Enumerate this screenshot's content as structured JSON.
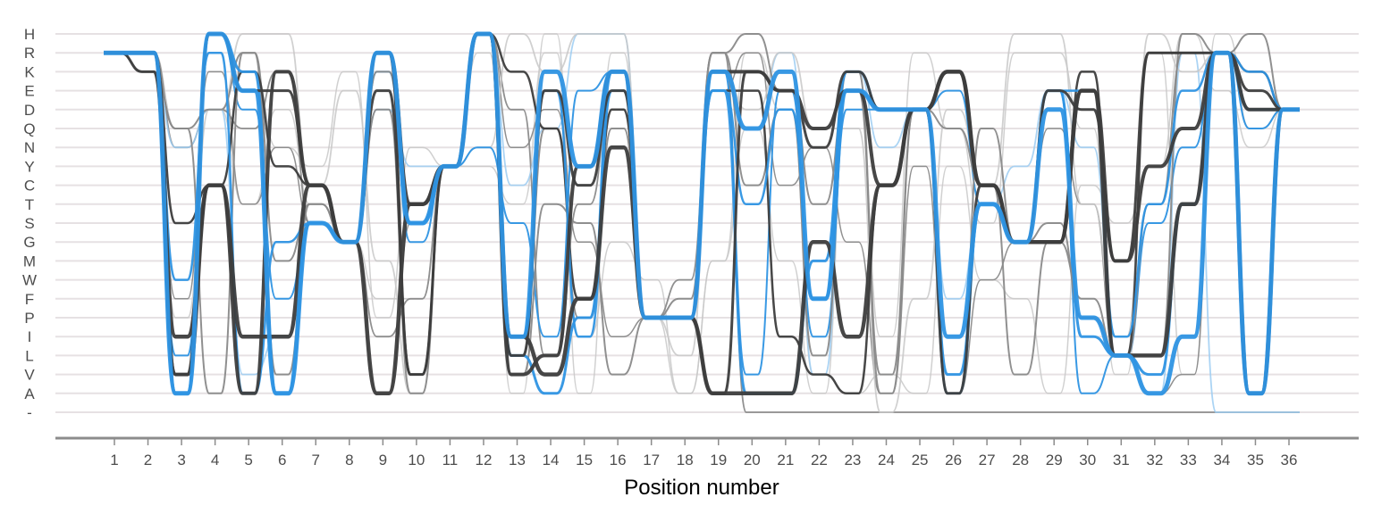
{
  "chart_data": {
    "type": "line",
    "xlabel": "Position number",
    "ylabel": "",
    "y_categories": [
      "H",
      "R",
      "K",
      "E",
      "D",
      "Q",
      "N",
      "Y",
      "C",
      "T",
      "S",
      "G",
      "M",
      "W",
      "F",
      "P",
      "I",
      "L",
      "V",
      "A",
      "-"
    ],
    "x": [
      1,
      2,
      3,
      4,
      5,
      6,
      7,
      8,
      9,
      10,
      11,
      12,
      13,
      14,
      15,
      16,
      17,
      18,
      19,
      20,
      21,
      22,
      23,
      24,
      25,
      26,
      27,
      28,
      29,
      30,
      31,
      32,
      33,
      34,
      35,
      36
    ],
    "colors": {
      "blue": "#2e93e3",
      "blue_light": "#9ccdf2",
      "dark": "#3d3d3d",
      "grey": "#8a8a8a",
      "grey_light": "#c8c8c8"
    },
    "series": [
      {
        "color": "blue",
        "weight": 5,
        "values": [
          "R",
          "R",
          "A",
          "H",
          "E",
          "A",
          "S",
          "G",
          "R",
          "S",
          "Y",
          "H",
          "I",
          "K",
          "Y",
          "K",
          "P",
          "P",
          "K",
          "Q",
          "K",
          "F",
          "E",
          "D",
          "D",
          "I",
          "T",
          "G",
          "D",
          "P",
          "L",
          "A",
          "I",
          "R",
          "A",
          "D"
        ]
      },
      {
        "color": "dark",
        "weight": 4.5,
        "values": [
          "R",
          "R",
          "I",
          "C",
          "I",
          "I",
          "C",
          "G",
          "A",
          "T",
          "Y",
          "H",
          "I",
          "V",
          "F",
          "N",
          "P",
          "P",
          "A",
          "A",
          "A",
          "G",
          "I",
          "C",
          "D",
          "K",
          "C",
          "G",
          "G",
          "E",
          "L",
          "L",
          "T",
          "R",
          "A",
          "D"
        ]
      },
      {
        "color": "dark",
        "weight": 4,
        "values": [
          "R",
          "R",
          "V",
          "C",
          "A",
          "K",
          "C",
          "G",
          "R",
          "T",
          "Y",
          "H",
          "V",
          "L",
          "Y",
          "K",
          "P",
          "P",
          "K",
          "K",
          "E",
          "Q",
          "E",
          "C",
          "D",
          "K",
          "C",
          "G",
          "G",
          "E",
          "M",
          "Y",
          "Q",
          "R",
          "D",
          "D"
        ]
      },
      {
        "color": "blue",
        "weight": 3,
        "values": [
          "R",
          "R",
          "A",
          "H",
          "K",
          "A",
          "S",
          "G",
          "R",
          "S",
          "Y",
          "H",
          "L",
          "A",
          "P",
          "K",
          "P",
          "P",
          "E",
          "A",
          "A",
          "M",
          "K",
          "D",
          "D",
          "V",
          "T",
          "G",
          "E",
          "I",
          "L",
          "V",
          "T",
          "R",
          "D",
          "D"
        ]
      },
      {
        "color": "dark",
        "weight": 3,
        "values": [
          "R",
          "K",
          "V",
          "H",
          "E",
          "E",
          "C",
          "G",
          "E",
          "V",
          "Y",
          "H",
          "L",
          "E",
          "C",
          "E",
          "P",
          "P",
          "A",
          "K",
          "E",
          "N",
          "K",
          "D",
          "D",
          "A",
          "C",
          "G",
          "E",
          "D",
          "M",
          "R",
          "R",
          "R",
          "E",
          "D"
        ]
      },
      {
        "color": "dark",
        "weight": 2.5,
        "values": [
          "R",
          "R",
          "S",
          "C",
          "K",
          "Y",
          "C",
          "G",
          "R",
          "V",
          "Y",
          "H",
          "K",
          "Q",
          "F",
          "D",
          "P",
          "P",
          "E",
          "E",
          "I",
          "V",
          "A",
          "C",
          "D",
          "K",
          "C",
          "G",
          "G",
          "K",
          "L",
          "R",
          "R",
          "R",
          "K",
          "D"
        ]
      },
      {
        "color": "blue",
        "weight": 2.5,
        "values": [
          "R",
          "R",
          "W",
          "R",
          "A",
          "G",
          "S",
          "G",
          "R",
          "S",
          "Y",
          "H",
          "I",
          "E",
          "I",
          "E",
          "P",
          "P",
          "E",
          "T",
          "D",
          "F",
          "E",
          "D",
          "D",
          "A",
          "T",
          "G",
          "E",
          "E",
          "I",
          "T",
          "E",
          "R",
          "K",
          "D"
        ]
      },
      {
        "color": "blue",
        "weight": 2,
        "values": [
          "R",
          "K",
          "L",
          "H",
          "D",
          "F",
          "S",
          "G",
          "K",
          "G",
          "Y",
          "N",
          "S",
          "I",
          "E",
          "K",
          "P",
          "P",
          "K",
          "V",
          "E",
          "I",
          "D",
          "D",
          "D",
          "E",
          "T",
          "G",
          "E",
          "A",
          "L",
          "S",
          "N",
          "R",
          "Q",
          "D"
        ]
      },
      {
        "color": "grey",
        "weight": 2,
        "values": [
          "R",
          "K",
          "Q",
          "D",
          "R",
          "V",
          "T",
          "G",
          "K",
          "S",
          "Y",
          "H",
          "V",
          "T",
          "S",
          "V",
          "P",
          "F",
          "R",
          "C",
          "D",
          "L",
          "K",
          "A",
          "D",
          "Q",
          "C",
          "V",
          "G",
          "F",
          "L",
          "L",
          "H",
          "R",
          "D",
          "D"
        ]
      },
      {
        "color": "grey",
        "weight": 2,
        "values": [
          "R",
          "K",
          "Q",
          "A",
          "R",
          "M",
          "T",
          "G",
          "D",
          "A",
          "Y",
          "H",
          "L",
          "Q",
          "P",
          "Q",
          "P",
          "P",
          "R",
          "H",
          "E",
          "T",
          "E",
          "V",
          "D",
          "A",
          "Q",
          "G",
          "S",
          "P",
          "L",
          "T",
          "R",
          "R",
          "H",
          "D"
        ]
      },
      {
        "color": "grey",
        "weight": 1.8,
        "values": [
          "R",
          "R",
          "N",
          "D",
          "Q",
          "K",
          "S",
          "G",
          "I",
          "F",
          "Y",
          "H",
          "D",
          "L",
          "T",
          "E",
          "P",
          "W",
          "R",
          "-",
          "-",
          "-",
          "-",
          "-",
          "-",
          "-",
          "-",
          "-",
          "-",
          "-",
          "-",
          "-",
          "-",
          "-",
          "-",
          "-"
        ]
      },
      {
        "color": "blue_light",
        "weight": 1.8,
        "values": [
          "R",
          "K",
          "N",
          "D",
          "V",
          "I",
          "S",
          "G",
          "D",
          "Y",
          "Y",
          "H",
          "C",
          "Q",
          "H",
          "H",
          "P",
          "P",
          "K",
          "Q",
          "R",
          "V",
          "K",
          "N",
          "D",
          "F",
          "T",
          "Y",
          "E",
          "N",
          "L",
          "A",
          "R",
          "-",
          "-",
          "-"
        ]
      },
      {
        "color": "grey_light",
        "weight": 1.8,
        "values": [
          "R",
          "R",
          "P",
          "D",
          "H",
          "H",
          "C",
          "E",
          "M",
          "A",
          "Y",
          "N",
          "H",
          "K",
          "H",
          "H",
          "P",
          "L",
          "K",
          "D",
          "R",
          "Q",
          "Q",
          "-",
          "F",
          "D",
          "C",
          "H",
          "H",
          "T",
          "I",
          "H",
          "K",
          "R",
          "Q",
          "D"
        ]
      },
      {
        "color": "grey_light",
        "weight": 1.5,
        "values": [
          "R",
          "R",
          "Q",
          "D",
          "T",
          "D",
          "T",
          "G",
          "F",
          "F",
          "Y",
          "R",
          "A",
          "H",
          "A",
          "R",
          "P",
          "A",
          "M",
          "R",
          "D",
          "V",
          "A",
          "V",
          "A",
          "Y",
          "W",
          "F",
          "A",
          "C",
          "S",
          "Y",
          "H",
          "E",
          "N",
          "D"
        ]
      },
      {
        "color": "grey_light",
        "weight": 1.5,
        "values": [
          "R",
          "R",
          "S",
          "C",
          "K",
          "N",
          "Y",
          "K",
          "P",
          "N",
          "Y",
          "Y",
          "T",
          "R",
          "I",
          "G",
          "W",
          "A",
          "M",
          "Q",
          "M",
          "A",
          "E",
          "I",
          "R",
          "Q",
          "S",
          "R",
          "R",
          "Q",
          "V",
          "R",
          "V",
          "H",
          "Q",
          "D"
        ]
      },
      {
        "color": "grey",
        "weight": 1.5,
        "values": [
          "R",
          "R",
          "F",
          "K",
          "T",
          "N",
          "S",
          "G",
          "A",
          "S",
          "Y",
          "H",
          "N",
          "D",
          "G",
          "I",
          "P",
          "P",
          "E",
          "R",
          "C",
          "N",
          "G",
          "A",
          "Y",
          "A",
          "W",
          "G",
          "Q",
          "T",
          "L",
          "A",
          "V",
          "R",
          "K",
          "D"
        ]
      }
    ]
  }
}
